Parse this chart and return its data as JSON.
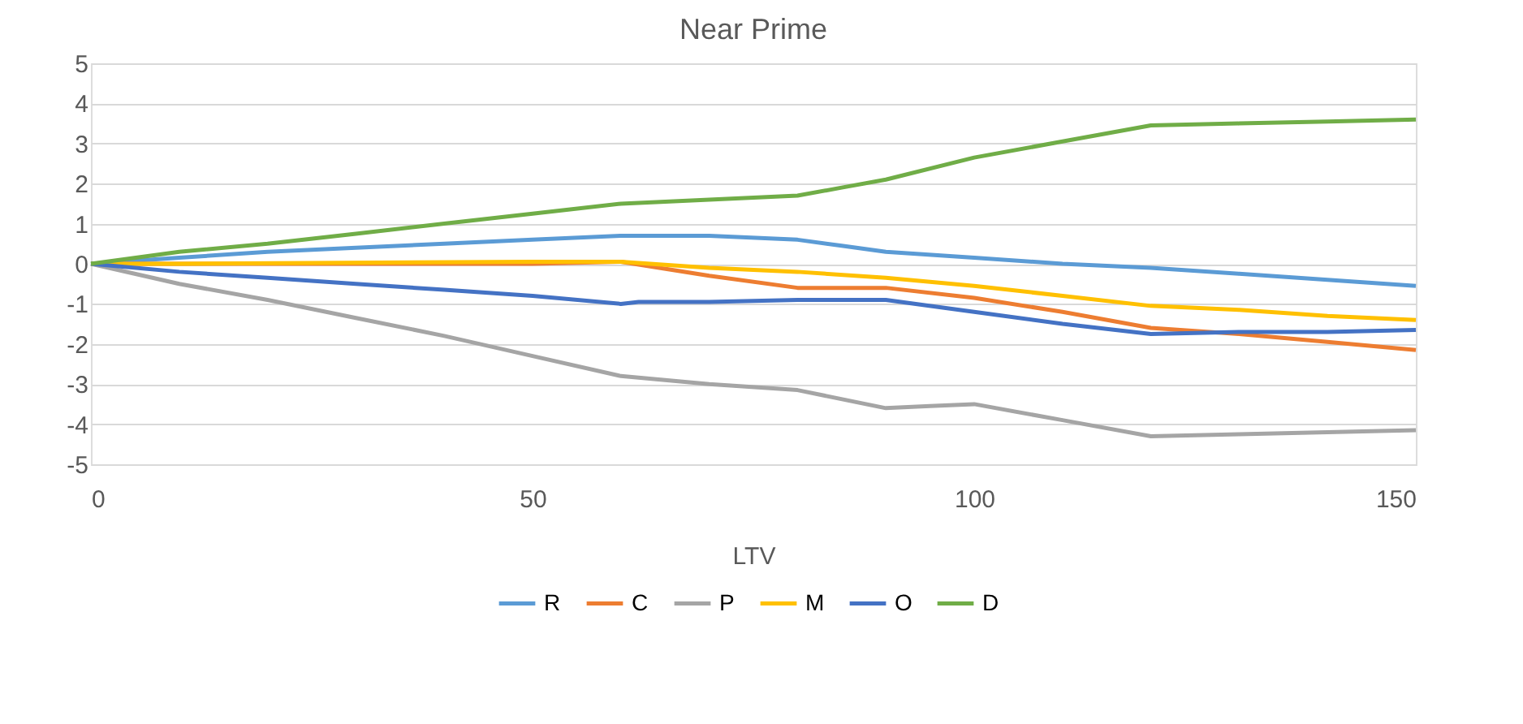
{
  "chart_data": {
    "type": "line",
    "title": "Near Prime",
    "xlabel": "LTV",
    "xlim": [
      0,
      150
    ],
    "xticks": [
      0,
      50,
      100,
      150
    ],
    "ylim": [
      -5,
      5
    ],
    "yticks": [
      -5,
      -4,
      -3,
      -2,
      -1,
      0,
      1,
      2,
      3,
      4,
      5
    ],
    "grid": "y",
    "legend": "bottom",
    "marker": "none",
    "line_style": "solid",
    "series": [
      {
        "name": "R",
        "color": "#5b9bd5",
        "x": [
          0,
          10,
          20,
          30,
          40,
          50,
          60,
          70,
          80,
          85,
          90,
          100,
          110,
          120,
          130,
          140,
          150
        ],
        "values": [
          0,
          0.15,
          0.3,
          0.4,
          0.5,
          0.6,
          0.7,
          0.7,
          0.6,
          0.45,
          0.3,
          0.15,
          0.0,
          -0.1,
          -0.25,
          -0.4,
          -0.55
        ]
      },
      {
        "name": "C",
        "color": "#ed7d31",
        "x": [
          0,
          10,
          50,
          60,
          70,
          80,
          85,
          90,
          100,
          110,
          120,
          130,
          140,
          150
        ],
        "values": [
          0,
          0,
          0,
          0.05,
          -0.3,
          -0.6,
          -0.6,
          -0.6,
          -0.85,
          -1.2,
          -1.6,
          -1.75,
          -1.95,
          -2.15
        ]
      },
      {
        "name": "P",
        "color": "#a5a5a5",
        "x": [
          0,
          10,
          20,
          30,
          40,
          50,
          60,
          70,
          80,
          90,
          95,
          100,
          110,
          120,
          130,
          140,
          150
        ],
        "values": [
          0,
          -0.5,
          -0.9,
          -1.35,
          -1.8,
          -2.3,
          -2.8,
          -3.0,
          -3.15,
          -3.6,
          -3.55,
          -3.5,
          -3.9,
          -4.3,
          -4.25,
          -4.2,
          -4.15
        ]
      },
      {
        "name": "M",
        "color": "#ffc000",
        "x": [
          0,
          10,
          50,
          60,
          70,
          80,
          90,
          100,
          110,
          120,
          130,
          140,
          150
        ],
        "values": [
          0,
          0,
          0.05,
          0.05,
          -0.1,
          -0.2,
          -0.35,
          -0.55,
          -0.8,
          -1.05,
          -1.15,
          -1.3,
          -1.4
        ]
      },
      {
        "name": "O",
        "color": "#4472c4",
        "x": [
          0,
          10,
          20,
          30,
          40,
          50,
          60,
          62,
          70,
          80,
          90,
          100,
          110,
          120,
          130,
          140,
          150
        ],
        "values": [
          0,
          -0.2,
          -0.35,
          -0.5,
          -0.65,
          -0.8,
          -1.0,
          -0.95,
          -0.95,
          -0.9,
          -0.9,
          -1.2,
          -1.5,
          -1.75,
          -1.7,
          -1.7,
          -1.65
        ]
      },
      {
        "name": "D",
        "color": "#70ad47",
        "x": [
          0,
          10,
          20,
          30,
          40,
          50,
          60,
          70,
          80,
          85,
          90,
          100,
          110,
          120,
          130,
          140,
          150
        ],
        "values": [
          0,
          0.3,
          0.5,
          0.75,
          1.0,
          1.25,
          1.5,
          1.6,
          1.7,
          1.9,
          2.1,
          2.65,
          3.05,
          3.45,
          3.5,
          3.55,
          3.6
        ]
      }
    ]
  }
}
